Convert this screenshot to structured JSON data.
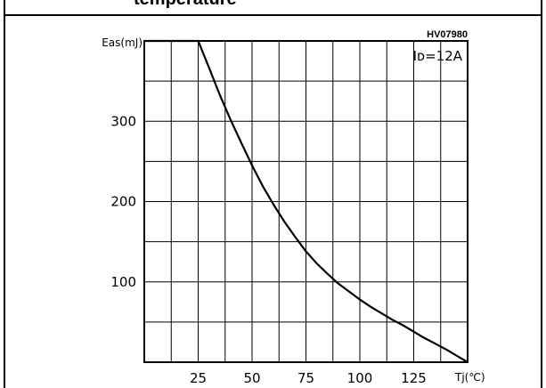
{
  "page": {
    "title_fragment": "temperature"
  },
  "chart_data": {
    "type": "line",
    "code": "HV07980",
    "annotation": "Iᴅ=12A",
    "ylabel": "Eas(mJ)",
    "xlabel": "Tj(℃)",
    "xlim": [
      0,
      150
    ],
    "ylim": [
      0,
      400
    ],
    "x_ticks": [
      25,
      50,
      75,
      100,
      125
    ],
    "y_ticks": [
      100,
      200,
      300
    ],
    "grid": true,
    "series": [
      {
        "x": [
          0,
          17,
          25,
          30,
          35,
          40,
          45,
          50,
          55,
          60,
          65,
          70,
          75,
          80,
          85,
          90,
          95,
          100,
          105,
          110,
          115,
          120,
          125,
          130,
          135,
          140,
          145,
          150
        ],
        "y": [
          400,
          400,
          400,
          367,
          333,
          302,
          273,
          245,
          219,
          196,
          175,
          156,
          138,
          123,
          110,
          98,
          88,
          78,
          69,
          61,
          53,
          46,
          38,
          30,
          23,
          16,
          8,
          0
        ]
      }
    ]
  }
}
